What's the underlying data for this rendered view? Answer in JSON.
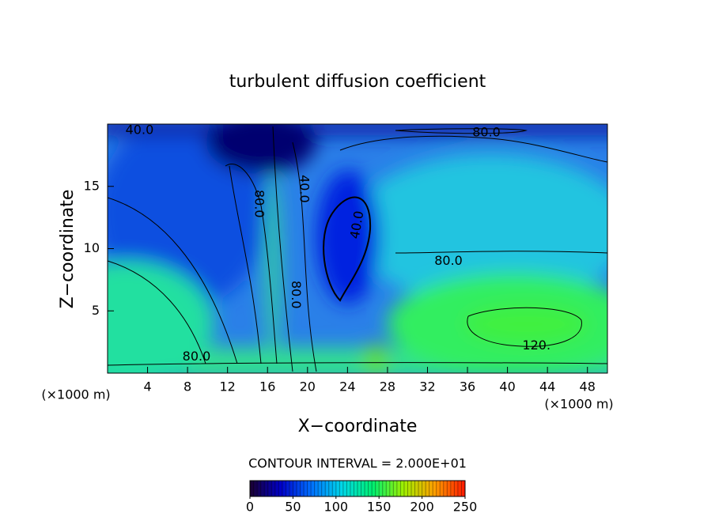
{
  "chart_data": {
    "type": "contour",
    "title": "turbulent diffusion coefficient",
    "xlabel": "X−coordinate",
    "ylabel": "Z−coordinate",
    "x_unit": "(×1000 m)",
    "y_unit": "(×1000 m)",
    "xlim": [
      0,
      50
    ],
    "ylim": [
      0,
      20
    ],
    "xticks": [
      4,
      8,
      12,
      16,
      20,
      24,
      28,
      32,
      36,
      40,
      44,
      48
    ],
    "yticks": [
      5,
      10,
      15
    ],
    "contour_interval": "CONTOUR INTERVAL = 2.000E+01",
    "contour_labels": [
      {
        "x": 3.2,
        "y": 19.5,
        "value": 40,
        "label": "40.0"
      },
      {
        "x": 37.9,
        "y": 19.3,
        "value": 80,
        "label": "80.0"
      },
      {
        "x": 15.1,
        "y": 13.6,
        "value": 80,
        "label": "80.0"
      },
      {
        "x": 19.6,
        "y": 14.8,
        "value": 40,
        "label": "40.0"
      },
      {
        "x": 25.0,
        "y": 11.9,
        "value": 40,
        "label": "40.0"
      },
      {
        "x": 34.1,
        "y": 9.0,
        "value": 80,
        "label": "80.0"
      },
      {
        "x": 18.8,
        "y": 6.3,
        "value": 80,
        "label": "80.0"
      },
      {
        "x": 42.9,
        "y": 2.2,
        "value": 120,
        "label": "120."
      },
      {
        "x": 8.9,
        "y": 1.3,
        "value": 80,
        "label": "80.0"
      }
    ],
    "clim": [
      0,
      250
    ],
    "cticks": [
      0,
      50,
      100,
      150,
      200,
      250
    ],
    "colormap": [
      "#1a0030",
      "#0000c8",
      "#0070ff",
      "#00d8e8",
      "#00f070",
      "#a0f000",
      "#ffa000",
      "#ff1800"
    ]
  }
}
